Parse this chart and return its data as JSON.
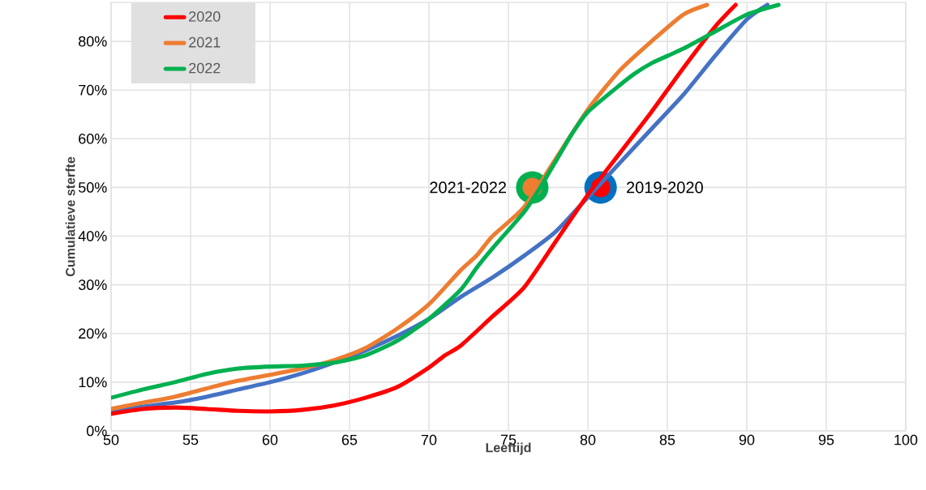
{
  "chart_data": {
    "type": "line",
    "xlabel": "Leeftijd",
    "ylabel": "Cumulatieve sterfte",
    "xlim": [
      50,
      100
    ],
    "xticks": [
      50,
      55,
      60,
      65,
      70,
      75,
      80,
      85,
      90,
      95,
      100
    ],
    "ylim": [
      0,
      88
    ],
    "yticks": [
      {
        "value": 0,
        "label": "0%"
      },
      {
        "value": 10,
        "label": "10%"
      },
      {
        "value": 20,
        "label": "20%"
      },
      {
        "value": 30,
        "label": "30%"
      },
      {
        "value": 40,
        "label": "40%"
      },
      {
        "value": 50,
        "label": "50%"
      },
      {
        "value": 60,
        "label": "60%"
      },
      {
        "value": 70,
        "label": "70%"
      },
      {
        "value": 80,
        "label": "80%"
      }
    ],
    "grid": true,
    "legend": "top left",
    "marker": "none",
    "line_style": "solid",
    "series": [
      {
        "color": "#4472c4",
        "x": [
          50,
          52,
          54,
          56,
          58,
          60,
          62,
          64,
          66,
          68,
          70,
          72,
          74,
          76,
          78,
          80,
          82,
          84,
          86,
          88,
          90,
          91.3
        ],
        "values": [
          4,
          5,
          5.8,
          7,
          8.5,
          10,
          11.8,
          14,
          16.5,
          19.5,
          23,
          27.5,
          31.5,
          36,
          41,
          48,
          55,
          62,
          69,
          77,
          84.5,
          87.5
        ]
      },
      {
        "name": "2020",
        "color": "#ff0000",
        "x": [
          50,
          52,
          54,
          56,
          58,
          60,
          62,
          64,
          66,
          68,
          70,
          71,
          72,
          74,
          76,
          78,
          80,
          82,
          84,
          86,
          88,
          89.3
        ],
        "values": [
          3.5,
          4.5,
          4.8,
          4.5,
          4.1,
          4,
          4.3,
          5.2,
          6.8,
          9,
          13,
          15.5,
          17.5,
          23.5,
          29.5,
          39,
          48.5,
          57,
          65.5,
          74.5,
          83,
          87.5
        ]
      },
      {
        "name": "2021",
        "color": "#ed7d31",
        "x": [
          50,
          52,
          54,
          56,
          58,
          60,
          62,
          64,
          66,
          68,
          70,
          72,
          73,
          74,
          76,
          78,
          80,
          82,
          84,
          86,
          87.5
        ],
        "values": [
          4.5,
          5.8,
          7,
          8.7,
          10.3,
          11.5,
          12.8,
          14.5,
          17,
          21,
          26,
          33,
          36,
          40,
          46,
          56,
          66,
          74,
          80,
          85.5,
          87.5
        ]
      },
      {
        "name": "2022",
        "color": "#00b050",
        "x": [
          50,
          52,
          54,
          56,
          58,
          60,
          62,
          64,
          66,
          68,
          70,
          72,
          73,
          74,
          76,
          77,
          78,
          79,
          80,
          82,
          83,
          84,
          85,
          86,
          88,
          90,
          92
        ],
        "values": [
          6.8,
          8.5,
          10,
          11.7,
          12.8,
          13.2,
          13.4,
          14,
          15.5,
          18.5,
          23,
          29,
          33.5,
          37.5,
          45,
          50,
          55.5,
          61,
          65.5,
          71,
          73.5,
          75.5,
          77,
          78.5,
          82,
          85.5,
          87.5
        ]
      }
    ],
    "annotations": [
      {
        "text": "2021-2022",
        "x": 76.5,
        "y": 50
      },
      {
        "text": "2019-2020",
        "x": 80.8,
        "y": 50
      }
    ]
  }
}
